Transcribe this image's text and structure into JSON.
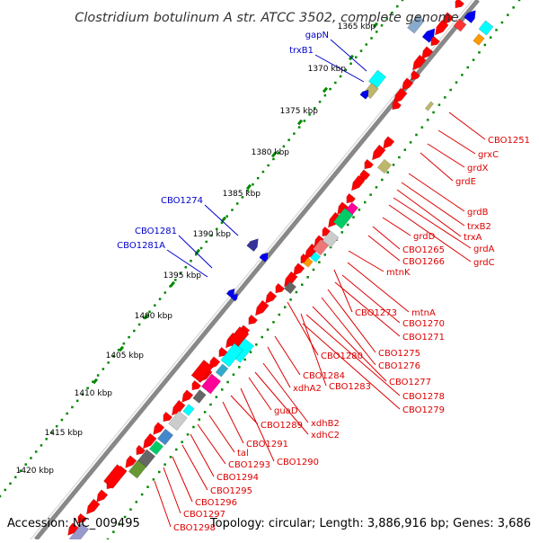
{
  "title": "Clostridium botulinum A str. ATCC 3502, complete genome",
  "footer": {
    "accession": "Accession: NC_009495",
    "summary": "Topology: circular; Length: 3,886,916 bp; Genes: 3,686"
  },
  "colors": {
    "forward_label": "#0000cc",
    "reverse_label": "#dd0000",
    "backbone": "#888888",
    "tick_dots": "#008800",
    "gene_red": "#ff0000",
    "gene_blue": "#0000ee",
    "gene_navy": "#333399",
    "gene_cyan": "#00ffff",
    "gene_pink": "#ff0099",
    "gene_khaki": "#bdb76b",
    "gene_green": "#00cc66",
    "gene_gray": "#666666",
    "gene_orange": "#ff9900"
  },
  "ticks": [
    "1365 kbp",
    "1370 kbp",
    "1375 kbp",
    "1380 kbp",
    "1385 kbp",
    "1390 kbp",
    "1395 kbp",
    "1400 kbp",
    "1405 kbp",
    "1410 kbp",
    "1415 kbp",
    "1420 kbp"
  ],
  "forward_labels": [
    "gapN",
    "trxB1",
    "CBO1274",
    "CBO1281",
    "CBO1281A"
  ],
  "reverse_labels": [
    "CBO1251",
    "grxC",
    "grdX",
    "grdE",
    "grdB",
    "trxB2",
    "trxA",
    "grdA",
    "grdC",
    "grdD",
    "CBO1265",
    "CBO1266",
    "mtnK",
    "mtnA",
    "CBO1273",
    "CBO1270",
    "CBO1271",
    "CBO1280",
    "CBO1275",
    "CBO1276",
    "CBO1284",
    "xdhA2",
    "CBO1283",
    "CBO1277",
    "CBO1278",
    "CBO1279",
    "guaD",
    "xdhB2",
    "CBO1289",
    "xdhC2",
    "CBO1291",
    "tal",
    "CBO1290",
    "CBO1293",
    "CBO1294",
    "CBO1295",
    "CBO1296",
    "CBO1297",
    "CBO1298"
  ]
}
